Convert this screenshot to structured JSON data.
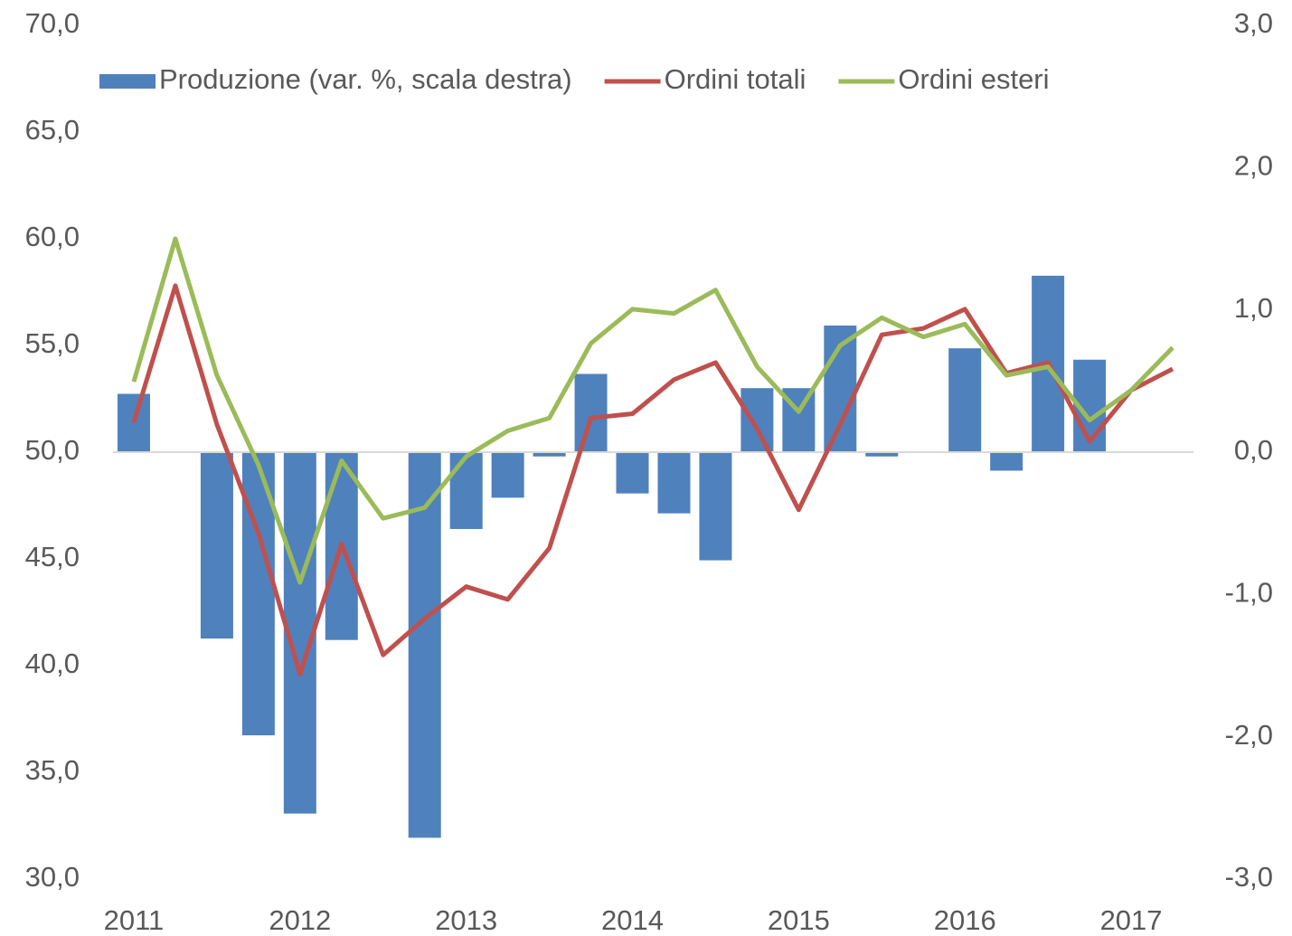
{
  "chart_data": {
    "type": "bar_line",
    "categories": [
      "2011",
      null,
      null,
      null,
      "2012",
      null,
      null,
      null,
      "2013",
      null,
      null,
      null,
      "2014",
      null,
      null,
      null,
      "2015",
      null,
      null,
      null,
      "2016",
      null,
      null,
      null,
      "2017",
      null
    ],
    "series": [
      {
        "name": "Produzione (var. %, scala destra)",
        "type": "bar",
        "axis": "y2",
        "color": "#4f81bd",
        "values": [
          0.41,
          null,
          -1.31,
          -1.99,
          -2.54,
          -1.32,
          null,
          -2.71,
          -0.54,
          -0.32,
          -0.03,
          0.55,
          -0.29,
          -0.43,
          -0.76,
          0.45,
          0.45,
          0.89,
          -0.03,
          null,
          0.73,
          -0.13,
          1.24,
          0.65,
          null,
          null
        ]
      },
      {
        "name": "Ordini totali",
        "type": "line",
        "color": "#c0504d",
        "values": [
          51.4,
          57.8,
          51.3,
          46.2,
          39.6,
          45.7,
          40.5,
          42.2,
          43.7,
          43.1,
          45.5,
          51.6,
          51.8,
          53.4,
          54.2,
          51.1,
          47.3,
          51.3,
          55.5,
          55.8,
          56.7,
          53.7,
          54.2,
          50.5,
          52.9,
          53.9
        ]
      },
      {
        "name": "Ordini esteri",
        "type": "line",
        "color": "#9bbb59",
        "values": [
          53.3,
          60.0,
          53.6,
          49.4,
          43.9,
          49.6,
          46.9,
          47.4,
          49.8,
          51.0,
          51.6,
          55.1,
          56.7,
          56.5,
          57.6,
          54.0,
          51.9,
          55.0,
          56.3,
          55.4,
          56.0,
          53.6,
          54.0,
          51.5,
          52.9,
          54.9
        ]
      }
    ],
    "ylim": [
      30,
      70
    ],
    "yticks": [
      {
        "value": 30,
        "label": "30,0"
      },
      {
        "value": 35,
        "label": "35,0"
      },
      {
        "value": 40,
        "label": "40,0"
      },
      {
        "value": 45,
        "label": "45,0"
      },
      {
        "value": 50,
        "label": "50,0"
      },
      {
        "value": 55,
        "label": "55,0"
      },
      {
        "value": 60,
        "label": "60,0"
      },
      {
        "value": 65,
        "label": "65,0"
      },
      {
        "value": 70,
        "label": "70,0"
      }
    ],
    "y2lim": [
      -3,
      3
    ],
    "y2ticks": [
      {
        "value": -3,
        "label": "-3,0"
      },
      {
        "value": -2,
        "label": "-2,0"
      },
      {
        "value": -1,
        "label": "-1,0"
      },
      {
        "value": 0,
        "label": "0,0"
      },
      {
        "value": 1,
        "label": "1,0"
      },
      {
        "value": 2,
        "label": "2,0"
      },
      {
        "value": 3,
        "label": "3,0"
      }
    ],
    "legend": "top"
  }
}
